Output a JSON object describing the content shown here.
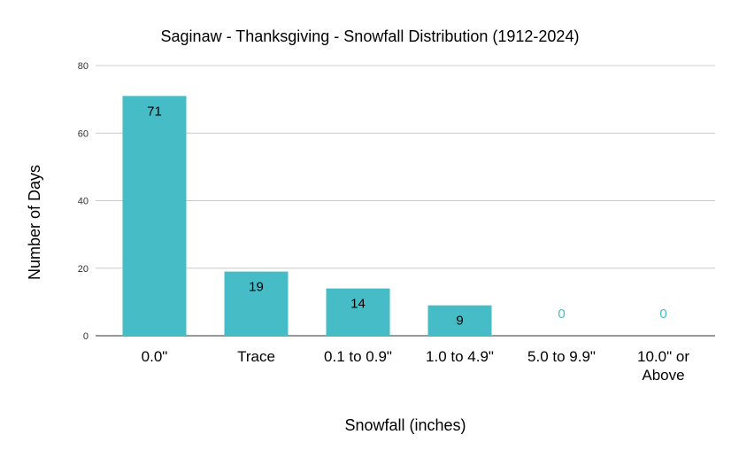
{
  "chart_data": {
    "type": "bar",
    "title": "Saginaw - Thanksgiving - Snowfall Distribution (1912-2024)",
    "xlabel": "Snowfall (inches)",
    "ylabel": "Number of Days",
    "categories": [
      "0.0\"",
      "Trace",
      "0.1 to 0.9\"",
      "1.0 to 4.9\"",
      "5.0 to 9.9\"",
      "10.0\" or Above"
    ],
    "values": [
      71,
      19,
      14,
      9,
      0,
      0
    ],
    "ylim": [
      0,
      80
    ],
    "yticks": [
      0,
      20,
      40,
      60,
      80
    ],
    "grid": true,
    "bar_color": "#46bdc6",
    "data_labels": true
  }
}
